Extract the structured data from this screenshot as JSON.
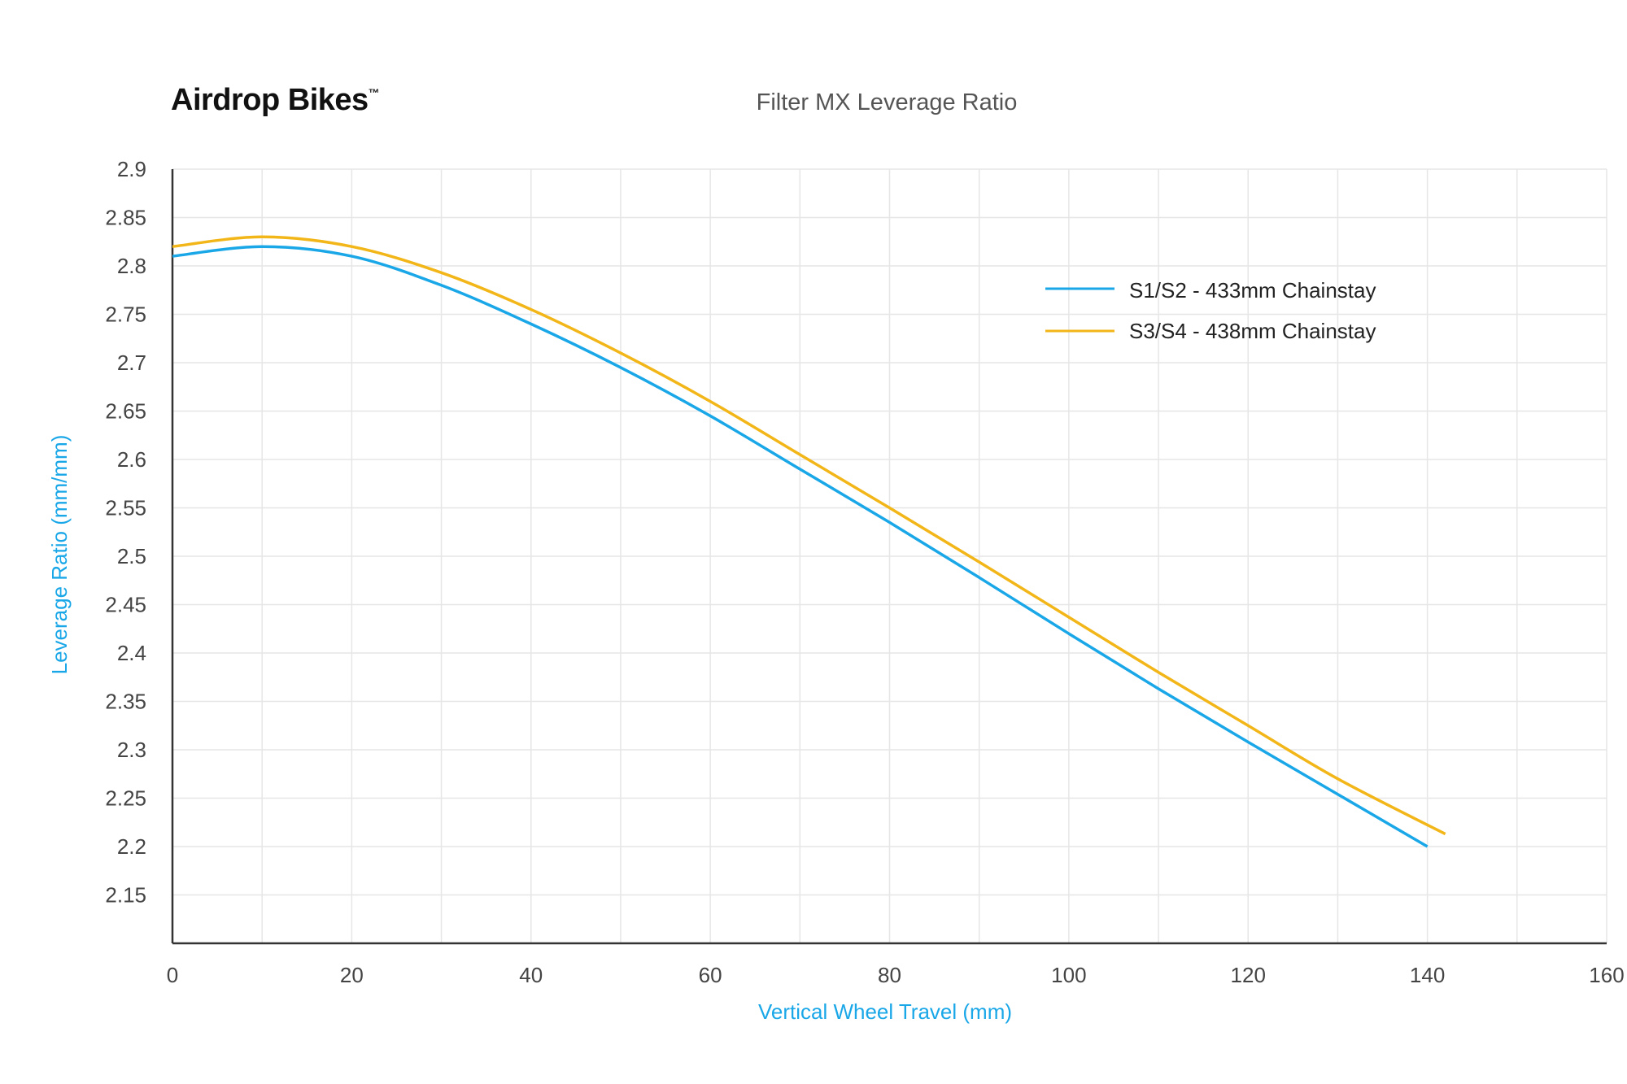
{
  "brand": {
    "name": "Airdrop Bikes",
    "tm": "™"
  },
  "colors": {
    "series1": "#1aa7e8",
    "series2": "#f2b619",
    "axis_label": "#1aa7e8",
    "text": "#444444",
    "grid": "#e6e6e6",
    "axis": "#333333"
  },
  "chart_data": {
    "type": "line",
    "title": "Filter MX Leverage Ratio",
    "xlabel": "Vertical Wheel Travel (mm)",
    "ylabel": "Leverage Ratio (mm/mm)",
    "xlim": [
      0,
      160
    ],
    "ylim": [
      2.1,
      2.9
    ],
    "xticks": [
      "0",
      "20",
      "40",
      "60",
      "80",
      "100",
      "120",
      "140",
      "160"
    ],
    "yticks": [
      "2.15",
      "2.2",
      "2.25",
      "2.3",
      "2.35",
      "2.4",
      "2.45",
      "2.5",
      "2.55",
      "2.6",
      "2.65",
      "2.7",
      "2.75",
      "2.8",
      "2.85",
      "2.9"
    ],
    "grid": true,
    "legend_position": "top-right",
    "series": [
      {
        "name": "S1/S2 - 433mm Chainstay",
        "color": "#1aa7e8",
        "x": [
          0,
          10,
          20,
          30,
          40,
          50,
          60,
          70,
          80,
          90,
          100,
          110,
          120,
          130,
          140
        ],
        "y": [
          2.81,
          2.82,
          2.81,
          2.78,
          2.74,
          2.695,
          2.645,
          2.59,
          2.535,
          2.478,
          2.42,
          2.363,
          2.308,
          2.254,
          2.2
        ]
      },
      {
        "name": "S3/S4 - 438mm Chainstay",
        "color": "#f2b619",
        "x": [
          0,
          10,
          20,
          30,
          40,
          50,
          60,
          70,
          80,
          90,
          100,
          110,
          120,
          130,
          142
        ],
        "y": [
          2.82,
          2.83,
          2.82,
          2.793,
          2.755,
          2.71,
          2.66,
          2.605,
          2.55,
          2.494,
          2.437,
          2.38,
          2.325,
          2.27,
          2.213
        ]
      }
    ]
  }
}
